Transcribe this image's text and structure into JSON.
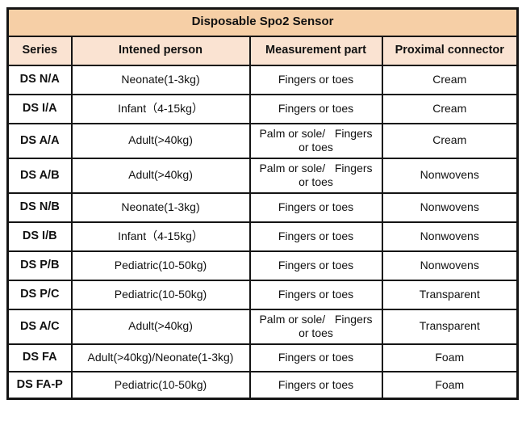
{
  "colors": {
    "title_bg": "#f6cfa6",
    "header_bg": "#fae3d2",
    "border": "#141414",
    "text": "#111111",
    "row_bg": "#ffffff"
  },
  "table": {
    "title": "Disposable Spo2 Sensor",
    "columns": [
      "Series",
      "Intened person",
      "Measurement part",
      "Proximal connector"
    ],
    "rows": [
      {
        "series": "DS N/A",
        "person": "Neonate(1-3kg)",
        "part": "Fingers or toes",
        "connector": "Cream"
      },
      {
        "series": "DS I/A",
        "person": "Infant（4-15kg）",
        "part": "Fingers or toes",
        "connector": "Cream"
      },
      {
        "series": "DS A/A",
        "person": "Adult(>40kg)",
        "part": "Palm or sole/   Fingers\nor toes",
        "connector": "Cream"
      },
      {
        "series": "DS A/B",
        "person": "Adult(>40kg)",
        "part": "Palm or sole/   Fingers\nor toes",
        "connector": "Nonwovens"
      },
      {
        "series": "DS N/B",
        "person": "Neonate(1-3kg)",
        "part": "Fingers or toes",
        "connector": "Nonwovens"
      },
      {
        "series": "DS I/B",
        "person": "Infant（4-15kg）",
        "part": "Fingers or toes",
        "connector": "Nonwovens"
      },
      {
        "series": "DS P/B",
        "person": "Pediatric(10-50kg)",
        "part": "Fingers or toes",
        "connector": "Nonwovens"
      },
      {
        "series": "DS P/C",
        "person": "Pediatric(10-50kg)",
        "part": "Fingers or toes",
        "connector": "Transparent"
      },
      {
        "series": "DS A/C",
        "person": "Adult(>40kg)",
        "part": "Palm or sole/   Fingers\nor toes",
        "connector": "Transparent"
      },
      {
        "series": "DS FA",
        "person": "Adult(>40kg)/Neonate(1-3kg)",
        "part": "Fingers or toes",
        "connector": "Foam"
      },
      {
        "series": "DS FA-P",
        "person": "Pediatric(10-50kg)",
        "part": "Fingers or toes",
        "connector": "Foam"
      }
    ]
  }
}
